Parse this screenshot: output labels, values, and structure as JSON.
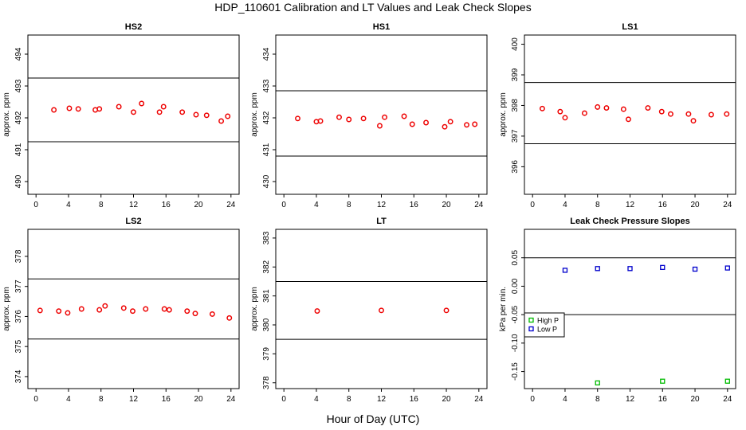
{
  "figure": {
    "title": "HDP_110601  Calibration and LT Values and Leak Check Slopes",
    "xlabel": "Hour of Day (UTC)"
  },
  "chart_data": [
    {
      "type": "scatter",
      "title": "HS2",
      "xlabel": "",
      "ylabel": "approx. ppm",
      "xlim": [
        -1,
        25
      ],
      "ylim": [
        489.6,
        494.6
      ],
      "xticks": [
        0,
        4,
        8,
        12,
        16,
        20,
        24
      ],
      "yticks": [
        490,
        491,
        492,
        493,
        494
      ],
      "hlines": [
        493.25,
        491.25
      ],
      "series": [
        {
          "color": "#ee0000",
          "marker": "circle",
          "x": [
            2.2,
            4.1,
            5.2,
            7.3,
            7.8,
            10.2,
            12.0,
            13.0,
            15.2,
            15.7,
            18.0,
            19.7,
            21.0,
            22.8,
            23.6
          ],
          "y": [
            492.25,
            492.3,
            492.28,
            492.25,
            492.28,
            492.35,
            492.18,
            492.45,
            492.18,
            492.35,
            492.18,
            492.1,
            492.08,
            491.9,
            492.05
          ]
        }
      ]
    },
    {
      "type": "scatter",
      "title": "HS1",
      "xlabel": "",
      "ylabel": "approx. ppm",
      "xlim": [
        -1,
        25
      ],
      "ylim": [
        429.6,
        434.6
      ],
      "xticks": [
        0,
        4,
        8,
        12,
        16,
        20,
        24
      ],
      "yticks": [
        430,
        431,
        432,
        433,
        434
      ],
      "hlines": [
        432.85,
        430.8
      ],
      "series": [
        {
          "color": "#ee0000",
          "marker": "circle",
          "x": [
            1.7,
            4.0,
            4.5,
            6.8,
            8.0,
            9.8,
            11.8,
            12.4,
            14.8,
            15.8,
            17.5,
            19.8,
            20.5,
            22.5,
            23.5
          ],
          "y": [
            431.98,
            431.88,
            431.9,
            432.02,
            431.95,
            431.98,
            431.75,
            432.02,
            432.05,
            431.8,
            431.85,
            431.72,
            431.88,
            431.78,
            431.8
          ]
        }
      ]
    },
    {
      "type": "scatter",
      "title": "LS1",
      "xlabel": "",
      "ylabel": "approx. ppm",
      "xlim": [
        -1,
        25
      ],
      "ylim": [
        395.1,
        400.3
      ],
      "xticks": [
        0,
        4,
        8,
        12,
        16,
        20,
        24
      ],
      "yticks": [
        396,
        397,
        398,
        399,
        400
      ],
      "hlines": [
        398.75,
        396.75
      ],
      "series": [
        {
          "color": "#ee0000",
          "marker": "circle",
          "x": [
            1.2,
            3.4,
            4.0,
            6.4,
            8.0,
            9.1,
            11.2,
            11.8,
            14.2,
            15.9,
            17.0,
            19.2,
            19.8,
            22.0,
            23.9
          ],
          "y": [
            397.9,
            397.8,
            397.6,
            397.75,
            397.95,
            397.92,
            397.88,
            397.55,
            397.92,
            397.8,
            397.72,
            397.72,
            397.5,
            397.7,
            397.72
          ]
        }
      ]
    },
    {
      "type": "scatter",
      "title": "LS2",
      "xlabel": "",
      "ylabel": "approx. ppm",
      "xlim": [
        -1,
        25
      ],
      "ylim": [
        373.6,
        378.9
      ],
      "xticks": [
        0,
        4,
        8,
        12,
        16,
        20,
        24
      ],
      "yticks": [
        374,
        375,
        376,
        377,
        378
      ],
      "hlines": [
        377.25,
        375.25
      ],
      "series": [
        {
          "color": "#ee0000",
          "marker": "circle",
          "x": [
            0.5,
            2.8,
            3.9,
            5.6,
            7.8,
            8.5,
            10.8,
            11.9,
            13.5,
            15.8,
            16.4,
            18.6,
            19.6,
            21.7,
            23.8
          ],
          "y": [
            376.2,
            376.18,
            376.12,
            376.25,
            376.22,
            376.35,
            376.28,
            376.18,
            376.25,
            376.25,
            376.22,
            376.18,
            376.1,
            376.08,
            375.95
          ]
        }
      ]
    },
    {
      "type": "scatter",
      "title": "LT",
      "xlabel": "",
      "ylabel": "approx. ppm",
      "xlim": [
        -1,
        25
      ],
      "ylim": [
        377.8,
        383.3
      ],
      "xticks": [
        0,
        4,
        8,
        12,
        16,
        20,
        24
      ],
      "yticks": [
        378,
        379,
        380,
        381,
        382,
        383
      ],
      "hlines": [
        381.5,
        379.5
      ],
      "series": [
        {
          "color": "#ee0000",
          "marker": "circle",
          "x": [
            4.1,
            12.0,
            20.0
          ],
          "y": [
            380.48,
            380.5,
            380.5
          ]
        }
      ]
    },
    {
      "type": "scatter",
      "title": "Leak Check Pressure Slopes",
      "xlabel": "",
      "ylabel": "kPa per min.",
      "xlim": [
        -1,
        25
      ],
      "ylim": [
        -0.18,
        0.1
      ],
      "xticks": [
        0,
        4,
        8,
        12,
        16,
        20,
        24
      ],
      "yticks": [
        0.05,
        0.0,
        -0.05,
        -0.1,
        -0.15
      ],
      "ytick_labels": [
        "0.05",
        "0.00",
        "-0.05",
        "-0.10",
        "-0.15"
      ],
      "hlines": [
        0.05,
        -0.05
      ],
      "legend": "left",
      "series": [
        {
          "name": "High P",
          "color": "#00bb00",
          "marker": "square",
          "x": [
            8,
            16,
            24
          ],
          "y": [
            -0.17,
            -0.167,
            -0.167
          ]
        },
        {
          "name": "Low P",
          "color": "#0000cc",
          "marker": "square",
          "x": [
            4,
            8,
            12,
            16,
            20,
            24
          ],
          "y": [
            0.028,
            0.031,
            0.031,
            0.033,
            0.03,
            0.032
          ]
        }
      ]
    }
  ]
}
